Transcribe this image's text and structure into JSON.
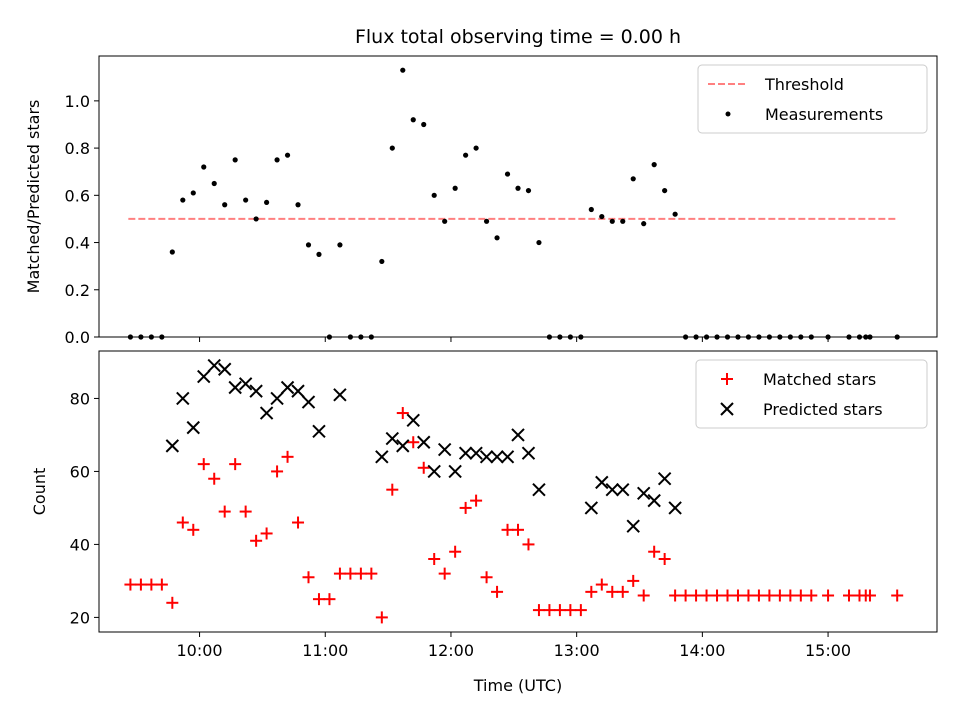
{
  "chart_data": [
    {
      "type": "scatter",
      "title": "Flux total observing time = 0.00 h",
      "xlabel": "",
      "ylabel": "Matched/Predicted stars",
      "xlim": [
        "09:12",
        "15:52"
      ],
      "ylim": [
        0,
        1.19
      ],
      "yticks": [
        "0.0",
        "0.2",
        "0.4",
        "0.6",
        "0.8",
        "1.0"
      ],
      "xticks": [
        "10:00",
        "11:00",
        "12:00",
        "13:00",
        "14:00",
        "15:00"
      ],
      "show_xtick_labels": false,
      "grid": false,
      "legend_position": "top-right",
      "series": [
        {
          "name": "Threshold",
          "kind": "line",
          "color": "#ff8080",
          "style": "dashed",
          "x": [
            "09:26",
            "15:33"
          ],
          "y": [
            0.5,
            0.5
          ]
        },
        {
          "name": "Measurements",
          "kind": "scatter",
          "color": "#000000",
          "marker": "dot",
          "x": [
            "09:27",
            "09:32",
            "09:37",
            "09:42",
            "09:47",
            "09:52",
            "09:57",
            "10:02",
            "10:07",
            "10:12",
            "10:17",
            "10:22",
            "10:27",
            "10:32",
            "10:37",
            "10:42",
            "10:47",
            "10:52",
            "10:57",
            "11:02",
            "11:07",
            "11:12",
            "11:17",
            "11:22",
            "11:27",
            "11:32",
            "11:37",
            "11:42",
            "11:47",
            "11:52",
            "11:57",
            "12:02",
            "12:07",
            "12:12",
            "12:17",
            "12:22",
            "12:27",
            "12:32",
            "12:37",
            "12:42",
            "12:47",
            "12:52",
            "12:57",
            "13:02",
            "13:07",
            "13:12",
            "13:17",
            "13:22",
            "13:27",
            "13:32",
            "13:37",
            "13:42",
            "13:47",
            "13:52",
            "13:57",
            "14:02",
            "14:07",
            "14:12",
            "14:17",
            "14:22",
            "14:27",
            "14:32",
            "14:37",
            "14:42",
            "14:47",
            "14:52",
            "15:00",
            "15:10",
            "15:15",
            "15:18",
            "15:20",
            "15:33"
          ],
          "y": [
            0,
            0,
            0,
            0,
            0.36,
            0.58,
            0.61,
            0.72,
            0.65,
            0.56,
            0.75,
            0.58,
            0.5,
            0.57,
            0.75,
            0.77,
            0.56,
            0.39,
            0.35,
            0,
            0.39,
            0,
            0,
            0,
            0.32,
            0.8,
            1.13,
            0.92,
            0.9,
            0.6,
            0.49,
            0.63,
            0.77,
            0.8,
            0.49,
            0.42,
            0.69,
            0.63,
            0.62,
            0.4,
            0,
            0,
            0,
            0,
            0.54,
            0.51,
            0.49,
            0.49,
            0.67,
            0.48,
            0.73,
            0.62,
            0.52,
            0,
            0,
            0,
            0,
            0,
            0,
            0,
            0,
            0,
            0,
            0,
            0,
            0,
            0,
            0,
            0,
            0,
            0,
            0
          ]
        }
      ]
    },
    {
      "type": "scatter",
      "title": "",
      "xlabel": "Time (UTC)",
      "ylabel": "Count",
      "xlim": [
        "09:12",
        "15:52"
      ],
      "ylim": [
        16,
        93
      ],
      "yticks": [
        "20",
        "40",
        "60",
        "80"
      ],
      "xticks": [
        "10:00",
        "11:00",
        "12:00",
        "13:00",
        "14:00",
        "15:00"
      ],
      "grid": false,
      "legend_position": "top-right",
      "series": [
        {
          "name": "Matched stars",
          "kind": "scatter",
          "color": "#ff0000",
          "marker": "plus",
          "x": [
            "09:27",
            "09:32",
            "09:37",
            "09:42",
            "09:47",
            "09:52",
            "09:57",
            "10:02",
            "10:07",
            "10:12",
            "10:17",
            "10:22",
            "10:27",
            "10:32",
            "10:37",
            "10:42",
            "10:47",
            "10:52",
            "10:57",
            "11:02",
            "11:07",
            "11:12",
            "11:17",
            "11:22",
            "11:27",
            "11:32",
            "11:37",
            "11:42",
            "11:47",
            "11:52",
            "11:57",
            "12:02",
            "12:07",
            "12:12",
            "12:17",
            "12:22",
            "12:27",
            "12:32",
            "12:37",
            "12:42",
            "12:47",
            "12:52",
            "12:57",
            "13:02",
            "13:07",
            "13:12",
            "13:17",
            "13:22",
            "13:27",
            "13:32",
            "13:37",
            "13:42",
            "13:47",
            "13:52",
            "13:57",
            "14:02",
            "14:07",
            "14:12",
            "14:17",
            "14:22",
            "14:27",
            "14:32",
            "14:37",
            "14:42",
            "14:47",
            "14:52",
            "15:00",
            "15:10",
            "15:15",
            "15:18",
            "15:20",
            "15:33"
          ],
          "y": [
            29,
            29,
            29,
            29,
            24,
            46,
            44,
            62,
            58,
            49,
            62,
            49,
            41,
            43,
            60,
            64,
            46,
            31,
            25,
            25,
            32,
            32,
            32,
            32,
            20,
            55,
            76,
            68,
            61,
            36,
            32,
            38,
            50,
            52,
            31,
            27,
            44,
            44,
            40,
            22,
            22,
            22,
            22,
            22,
            27,
            29,
            27,
            27,
            30,
            26,
            38,
            36,
            26,
            26,
            26,
            26,
            26,
            26,
            26,
            26,
            26,
            26,
            26,
            26,
            26,
            26,
            26,
            26,
            26,
            26,
            26,
            26
          ]
        },
        {
          "name": "Predicted stars",
          "kind": "scatter",
          "color": "#000000",
          "marker": "x",
          "x": [
            "09:47",
            "09:52",
            "09:57",
            "10:02",
            "10:07",
            "10:12",
            "10:17",
            "10:22",
            "10:27",
            "10:32",
            "10:37",
            "10:42",
            "10:47",
            "10:52",
            "10:57",
            "11:07",
            "11:27",
            "11:32",
            "11:37",
            "11:42",
            "11:47",
            "11:52",
            "11:57",
            "12:02",
            "12:07",
            "12:12",
            "12:17",
            "12:22",
            "12:27",
            "12:32",
            "12:37",
            "12:42",
            "13:07",
            "13:12",
            "13:17",
            "13:22",
            "13:27",
            "13:32",
            "13:37",
            "13:42",
            "13:47"
          ],
          "y": [
            67,
            80,
            72,
            86,
            89,
            88,
            83,
            84,
            82,
            76,
            80,
            83,
            82,
            79,
            71,
            81,
            64,
            69,
            67,
            74,
            68,
            60,
            66,
            60,
            65,
            65,
            64,
            64,
            64,
            70,
            65,
            55,
            50,
            57,
            55,
            55,
            45,
            54,
            52,
            58,
            50
          ]
        }
      ]
    }
  ]
}
